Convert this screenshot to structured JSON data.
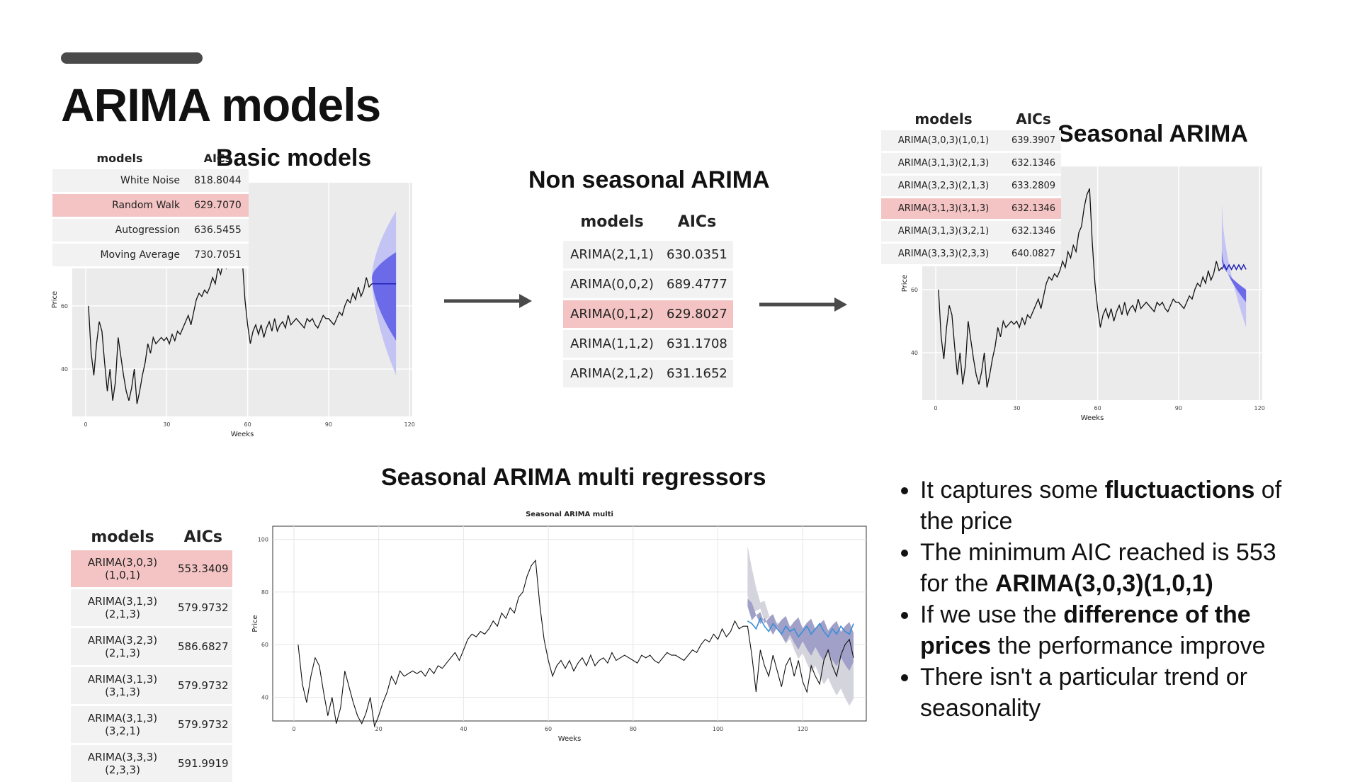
{
  "page": {
    "title": "ARIMA models"
  },
  "basic": {
    "title": "Basic models",
    "table": {
      "headers": [
        "models",
        "AICs"
      ],
      "rows": [
        {
          "model": "White Noise",
          "aic": "818.8044",
          "highlight": false
        },
        {
          "model": "Random Walk",
          "aic": "629.7070",
          "highlight": true
        },
        {
          "model": "Autogression",
          "aic": "636.5455",
          "highlight": false
        },
        {
          "model": "Moving Average",
          "aic": "730.7051",
          "highlight": false
        }
      ]
    }
  },
  "nonseasonal": {
    "title": "Non seasonal ARIMA",
    "table": {
      "headers": [
        "models",
        "AICs"
      ],
      "rows": [
        {
          "model": "ARIMA(2,1,1)",
          "aic": "630.0351",
          "highlight": false
        },
        {
          "model": "ARIMA(0,0,2)",
          "aic": "689.4777",
          "highlight": false
        },
        {
          "model": "ARIMA(0,1,2)",
          "aic": "629.8027",
          "highlight": true
        },
        {
          "model": "ARIMA(1,1,2)",
          "aic": "631.1708",
          "highlight": false
        },
        {
          "model": "ARIMA(2,1,2)",
          "aic": "631.1652",
          "highlight": false
        }
      ]
    }
  },
  "seasonal": {
    "title": "Seasonal ARIMA",
    "table": {
      "headers": [
        "models",
        "AICs"
      ],
      "rows": [
        {
          "model": "ARIMA(3,0,3)(1,0,1)",
          "aic": "639.3907",
          "highlight": false
        },
        {
          "model": "ARIMA(3,1,3)(2,1,3)",
          "aic": "632.1346",
          "highlight": false
        },
        {
          "model": "ARIMA(3,2,3)(2,1,3)",
          "aic": "633.2809",
          "highlight": false
        },
        {
          "model": "ARIMA(3,1,3)(3,1,3)",
          "aic": "632.1346",
          "highlight": true
        },
        {
          "model": "ARIMA(3,1,3)(3,2,1)",
          "aic": "632.1346",
          "highlight": false
        },
        {
          "model": "ARIMA(3,3,3)(2,3,3)",
          "aic": "640.0827",
          "highlight": false
        }
      ]
    }
  },
  "multi": {
    "title": "Seasonal ARIMA multi regressors",
    "table": {
      "headers": [
        "models",
        "AICs"
      ],
      "rows": [
        {
          "model": "ARIMA(3,0,3)(1,0,1)",
          "aic": "553.3409",
          "highlight": true
        },
        {
          "model": "ARIMA(3,1,3)(2,1,3)",
          "aic": "579.9732",
          "highlight": false
        },
        {
          "model": "ARIMA(3,2,3)(2,1,3)",
          "aic": "586.6827",
          "highlight": false
        },
        {
          "model": "ARIMA(3,1,3)(3,1,3)",
          "aic": "579.9732",
          "highlight": false
        },
        {
          "model": "ARIMA(3,1,3)(3,2,1)",
          "aic": "579.9732",
          "highlight": false
        },
        {
          "model": "ARIMA(3,3,3)(2,3,3)",
          "aic": "591.9919",
          "highlight": false
        }
      ]
    }
  },
  "bullets": [
    {
      "parts": [
        {
          "t": "It captures some ",
          "b": false
        },
        {
          "t": "fluctuactions",
          "b": true
        },
        {
          "t": " of the price",
          "b": false
        }
      ]
    },
    {
      "parts": [
        {
          "t": "The minimum AIC reached is 553 for the ",
          "b": false
        },
        {
          "t": "ARIMA(3,0,3)(1,0,1)",
          "b": true
        }
      ]
    },
    {
      "parts": [
        {
          "t": "If we use the ",
          "b": false
        },
        {
          "t": "difference of the prices",
          "b": true
        },
        {
          "t": " the performance improve",
          "b": false
        }
      ]
    },
    {
      "parts": [
        {
          "t": "There isn't a particular trend or seasonality",
          "b": false
        }
      ]
    }
  ],
  "colors": {
    "forecast_inner": "#6b6bea",
    "forecast_outer": "#c4c4f4",
    "forecast_line": "#1f1fb4",
    "multi_outer": "#d4d4dc",
    "multi_inner": "#a0a0c8",
    "multi_fc_line": "#3a8fd8",
    "highlight_row": "#f4c4c4",
    "table_row": "#f2f2f2"
  },
  "chart_data": [
    {
      "type": "line",
      "id": "basic",
      "xlabel": "Weeks",
      "ylabel": "Price",
      "xlim": [
        -5,
        121
      ],
      "ylim": [
        25,
        99
      ],
      "xticks": [
        0,
        30,
        60,
        90,
        120
      ],
      "yticks": [
        40,
        60
      ],
      "series": [
        {
          "values": [
            60,
            45,
            38,
            48,
            55,
            52,
            42,
            33,
            40,
            30,
            36,
            50,
            44,
            38,
            33,
            30,
            34,
            40,
            29,
            33,
            38,
            42,
            48,
            45,
            50,
            48,
            49,
            50,
            49,
            50,
            48,
            51,
            49,
            52,
            51,
            53,
            55,
            57,
            54,
            58,
            62,
            64,
            63,
            65,
            64,
            66,
            69,
            67,
            72,
            70,
            74,
            72,
            78,
            80,
            86,
            90,
            92,
            75,
            62,
            54,
            48,
            52,
            54,
            51,
            54,
            50,
            53,
            55,
            52,
            56,
            52,
            54,
            55,
            53,
            57,
            54,
            55,
            56,
            55,
            54,
            53,
            56,
            55,
            56,
            54,
            53,
            55,
            57,
            56,
            56,
            55,
            54,
            56,
            58,
            57,
            60,
            62,
            61,
            64,
            62,
            66,
            63,
            65,
            69,
            66,
            67
          ]
        }
      ],
      "forecast": {
        "start": 106,
        "end": 115,
        "mean": 67,
        "inner": [
          [
            69,
            69
          ],
          [
            77,
            49
          ]
        ],
        "outer": [
          [
            69,
            69
          ],
          [
            90,
            38
          ]
        ]
      }
    },
    {
      "type": "line",
      "id": "seasonal",
      "xlabel": "Weeks",
      "ylabel": "Price",
      "xlim": [
        -5,
        121
      ],
      "ylim": [
        25,
        99
      ],
      "xticks": [
        0,
        30,
        60,
        90,
        120
      ],
      "yticks": [
        40,
        60
      ],
      "series": [
        {
          "values": [
            60,
            45,
            38,
            48,
            55,
            52,
            42,
            33,
            40,
            30,
            36,
            50,
            44,
            38,
            33,
            30,
            34,
            40,
            29,
            33,
            38,
            42,
            48,
            45,
            50,
            48,
            49,
            50,
            49,
            50,
            48,
            51,
            49,
            52,
            51,
            53,
            55,
            57,
            54,
            58,
            62,
            64,
            63,
            65,
            64,
            66,
            69,
            67,
            72,
            70,
            74,
            72,
            78,
            80,
            86,
            90,
            92,
            75,
            62,
            54,
            48,
            52,
            54,
            51,
            54,
            50,
            53,
            55,
            52,
            56,
            52,
            54,
            55,
            53,
            57,
            54,
            55,
            56,
            55,
            54,
            53,
            56,
            55,
            56,
            54,
            53,
            55,
            57,
            56,
            56,
            55,
            54,
            56,
            58,
            57,
            60,
            62,
            61,
            64,
            62,
            66,
            63,
            65,
            69,
            66,
            67
          ]
        }
      ],
      "forecast": {
        "start": 106,
        "end": 115,
        "mean": 67,
        "inner": [
          [
            69,
            72
          ],
          [
            60,
            56
          ]
        ],
        "outer": [
          [
            71,
            87
          ],
          [
            58,
            48
          ]
        ]
      }
    },
    {
      "type": "line",
      "id": "multi",
      "title": "Seasonal ARIMA multi",
      "xlabel": "Weeks",
      "ylabel": "Price",
      "xlim": [
        -5,
        135
      ],
      "ylim": [
        31,
        105
      ],
      "xticks": [
        0,
        20,
        40,
        60,
        80,
        100,
        120
      ],
      "yticks": [
        40,
        60,
        80,
        100
      ],
      "series": [
        {
          "values": [
            60,
            45,
            38,
            48,
            55,
            52,
            42,
            33,
            40,
            30,
            36,
            50,
            44,
            38,
            33,
            30,
            34,
            40,
            29,
            33,
            38,
            42,
            48,
            45,
            50,
            48,
            49,
            50,
            49,
            50,
            48,
            51,
            49,
            52,
            51,
            53,
            55,
            57,
            54,
            58,
            62,
            64,
            63,
            65,
            64,
            66,
            69,
            67,
            72,
            70,
            74,
            72,
            78,
            80,
            86,
            90,
            92,
            75,
            62,
            54,
            48,
            52,
            54,
            51,
            54,
            50,
            53,
            55,
            52,
            56,
            52,
            54,
            55,
            53,
            57,
            54,
            55,
            56,
            55,
            54,
            53,
            56,
            55,
            56,
            54,
            53,
            55,
            57,
            56,
            56,
            55,
            54,
            56,
            58,
            57,
            60,
            62,
            61,
            64,
            62,
            66,
            63,
            65,
            69,
            66,
            67
          ]
        }
      ],
      "actual_tail": [
        67,
        56,
        42,
        58,
        52,
        48,
        56,
        50,
        44,
        52,
        55,
        48,
        54,
        46,
        42,
        52,
        48,
        45,
        54,
        58,
        52,
        48,
        56,
        60,
        62,
        55
      ],
      "forecast_mean": [
        69,
        68,
        66,
        70,
        67,
        65,
        68,
        66,
        64,
        67,
        65,
        66,
        63,
        65,
        67,
        64,
        66,
        68,
        65,
        63,
        66,
        64,
        67,
        65,
        64,
        68
      ],
      "forecast_inner": [
        [
          72,
          80
        ],
        [
          66,
          52
        ]
      ],
      "forecast_outer": [
        [
          76,
          100
        ],
        [
          62,
          38
        ]
      ]
    }
  ]
}
